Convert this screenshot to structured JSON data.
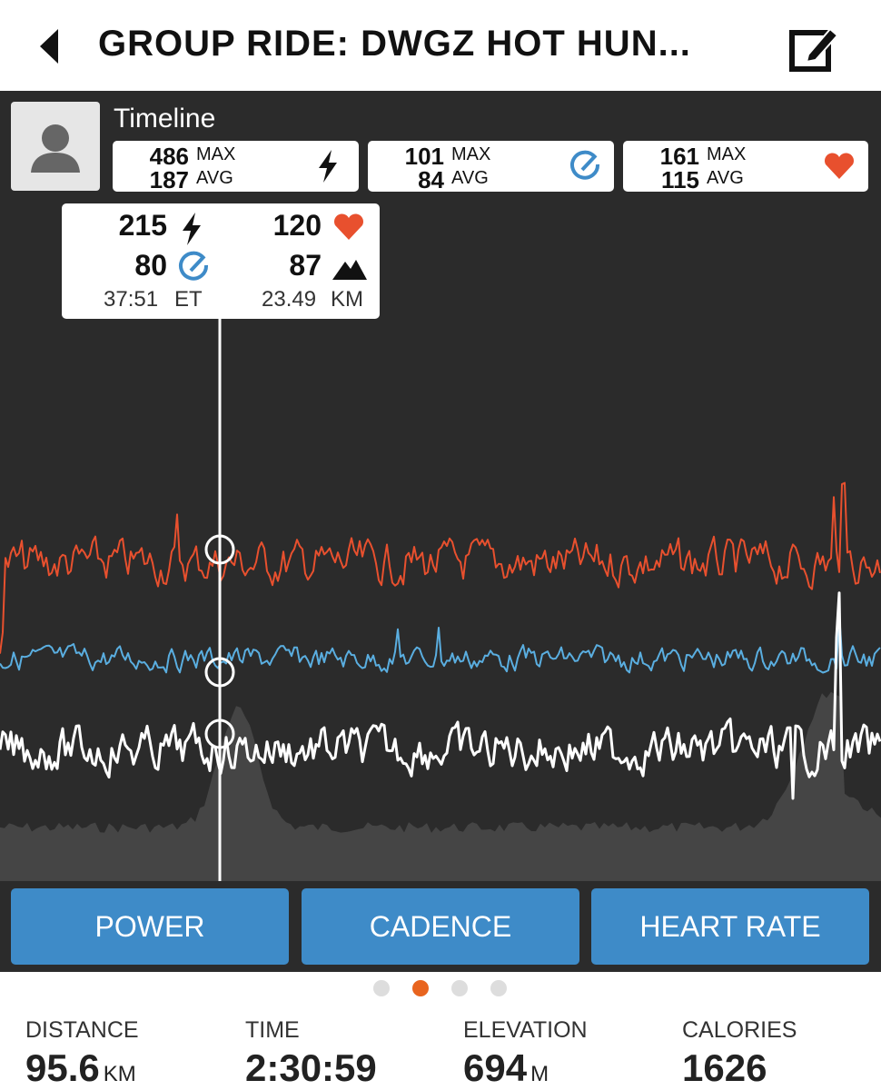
{
  "header": {
    "title": "GROUP RIDE: DWGZ HOT HUN..."
  },
  "timeline": {
    "title": "Timeline",
    "stats": [
      {
        "max": 486,
        "max_label": "MAX",
        "avg": 187,
        "avg_label": "AVG"
      },
      {
        "max": 101,
        "max_label": "MAX",
        "avg": 84,
        "avg_label": "AVG"
      },
      {
        "max": 161,
        "max_label": "MAX",
        "avg": 115,
        "avg_label": "AVG"
      }
    ]
  },
  "tooltip": {
    "power": 215,
    "heart_rate": 120,
    "cadence": 80,
    "elevation": 87,
    "time": "37:51",
    "time_unit": "ET",
    "distance": 23.49,
    "distance_unit": "KM"
  },
  "tabs": [
    "POWER",
    "CADENCE",
    "HEART RATE"
  ],
  "summary": [
    {
      "label": "DISTANCE",
      "value": 95.6,
      "unit": "KM"
    },
    {
      "label": "TIME",
      "value": "2:30:59"
    },
    {
      "label": "ELEVATION",
      "value": 694,
      "unit": "M"
    },
    {
      "label": "CALORIES",
      "value": 1626
    }
  ]
}
